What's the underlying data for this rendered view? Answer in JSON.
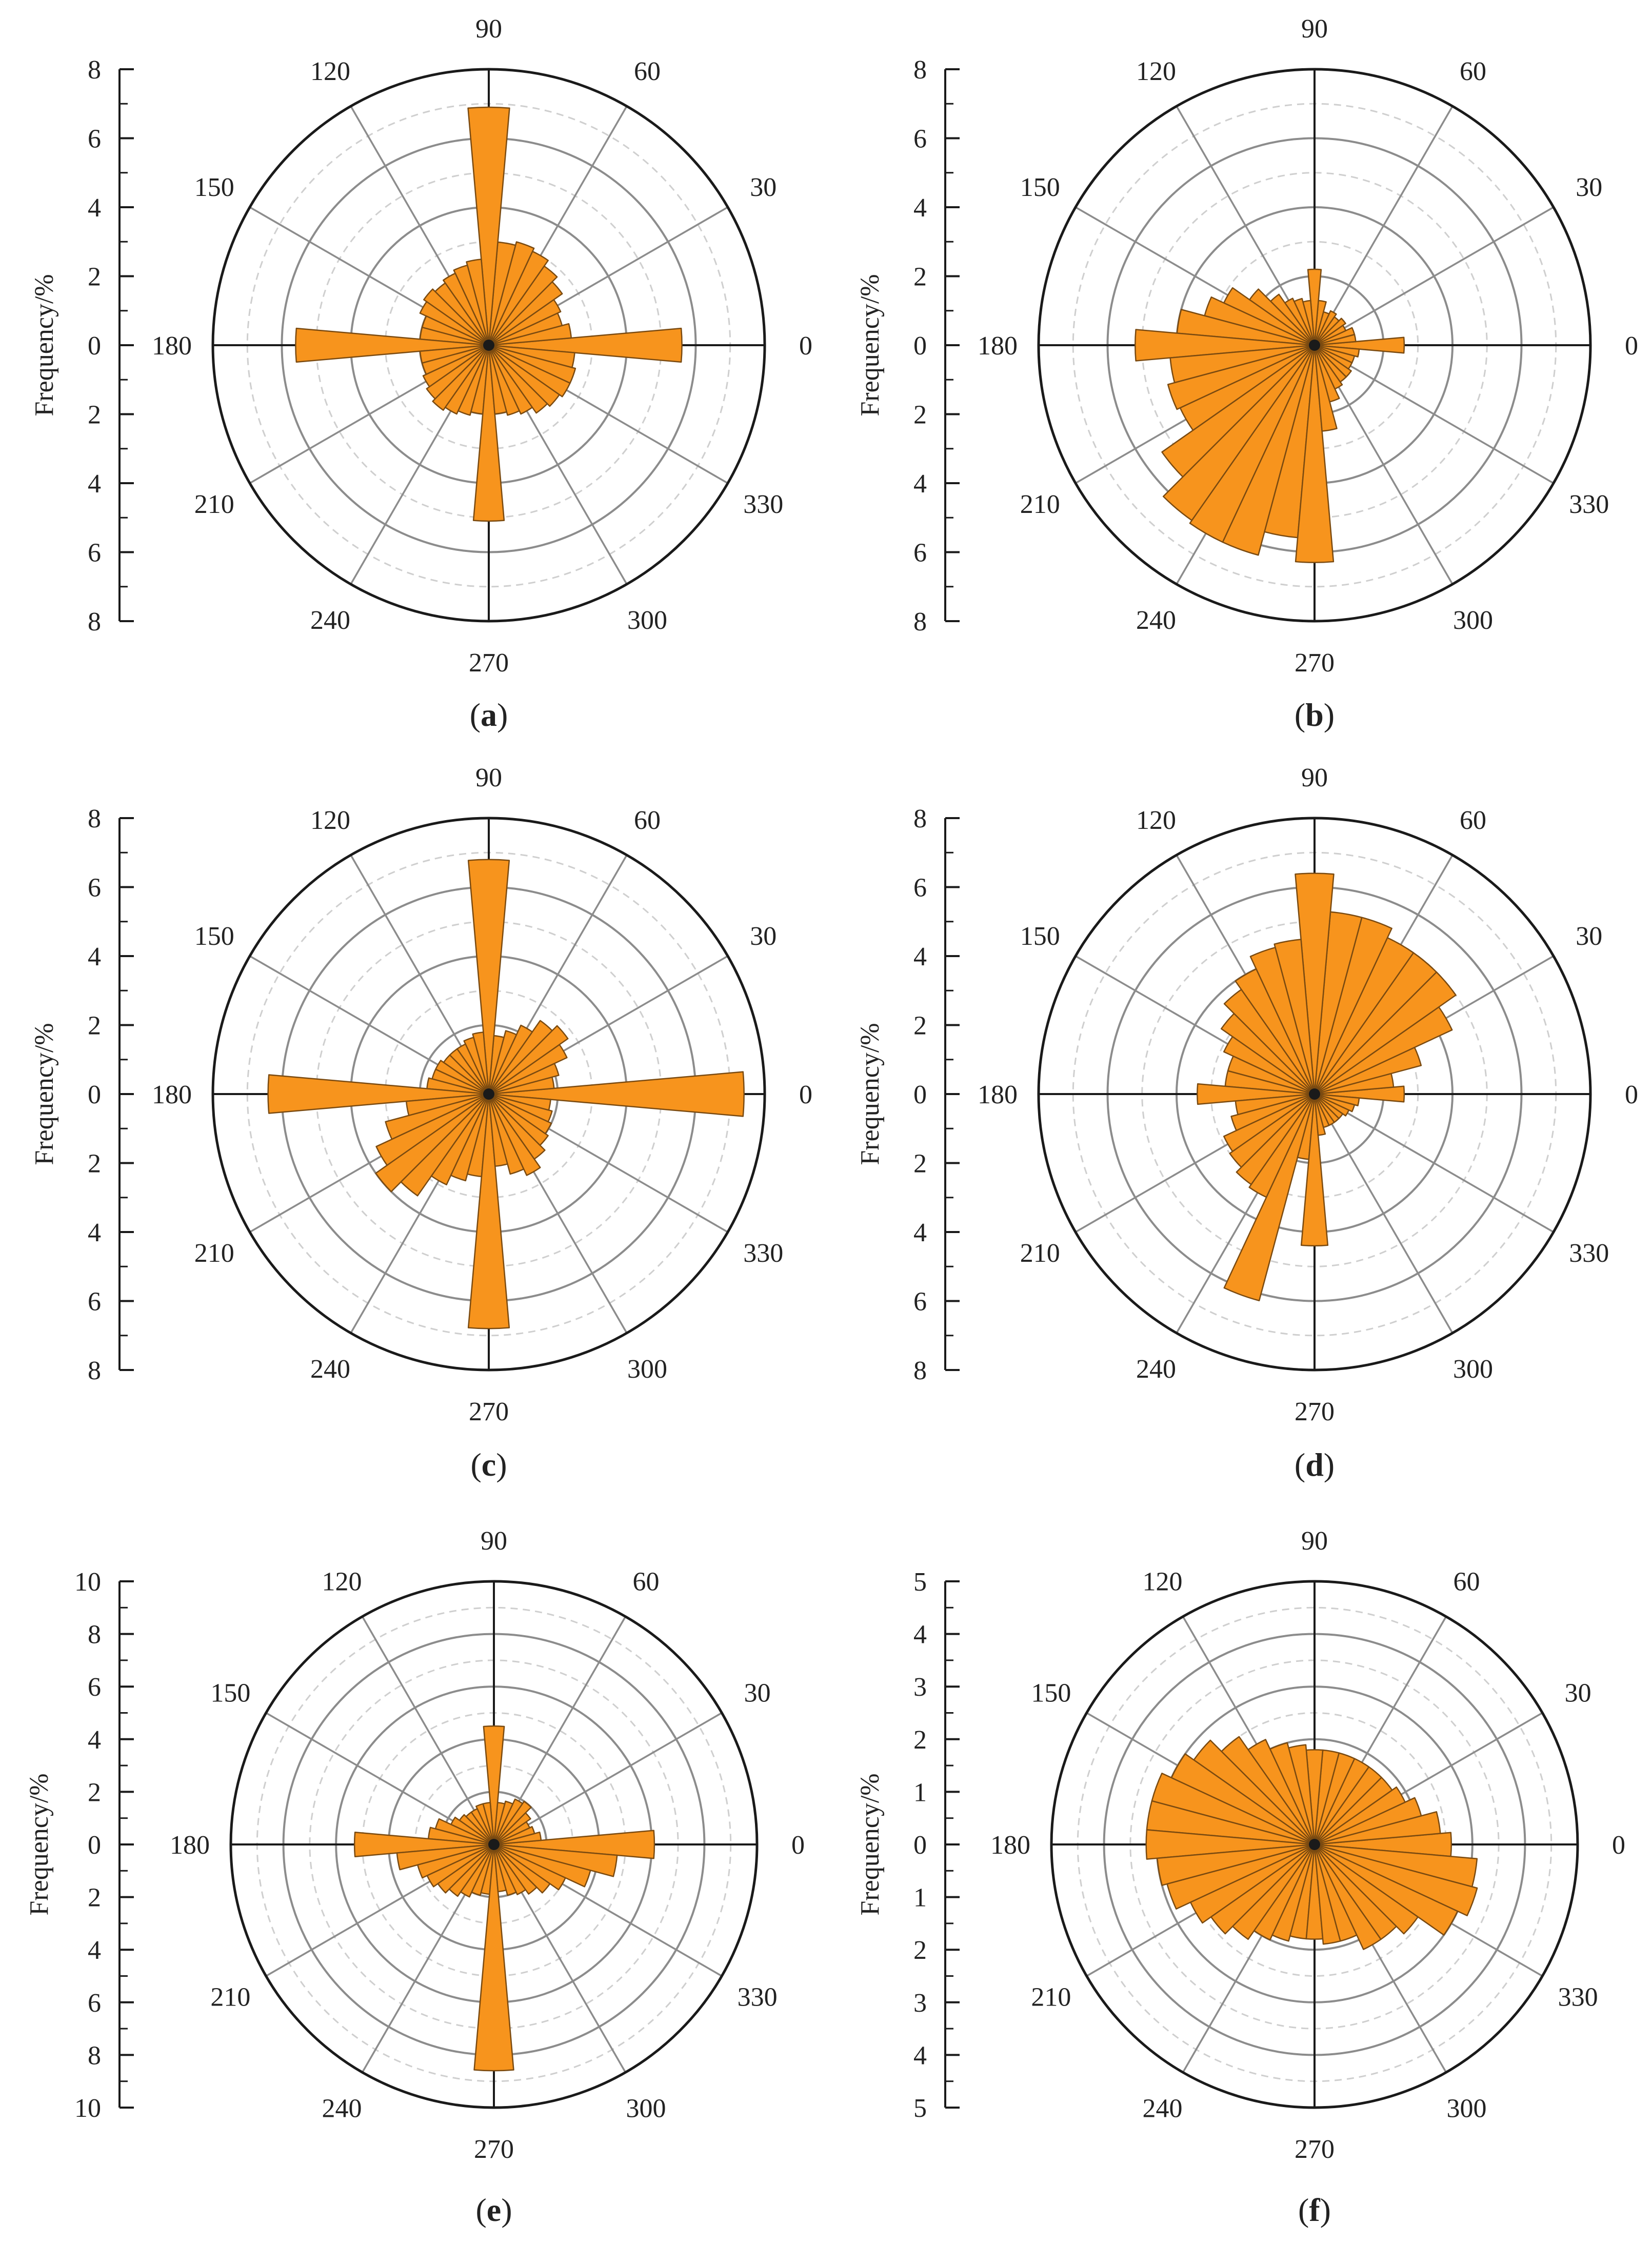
{
  "figure": {
    "colors": {
      "bar_fill": "#f7941d",
      "bar_stroke": "#7a4a10",
      "major_ring": "#8c8c8c",
      "minor_ring": "#cfcfcf",
      "spoke": "#8c8c8c",
      "outer_ring": "#1a1a1a",
      "axis": "#1a1a1a"
    }
  },
  "chart_data": [
    {
      "id": "a",
      "caption_letter": "a",
      "type": "rose",
      "bin_width_deg": 10,
      "angle_labels": [
        "0",
        "30",
        "60",
        "90",
        "120",
        "150",
        "180",
        "210",
        "240",
        "270",
        "300",
        "330"
      ],
      "radial_axis_label": "Frequency/%",
      "radial_ticks": [
        "8",
        "6",
        "4",
        "2",
        "0",
        "2",
        "4",
        "6",
        "8"
      ],
      "r_max": 8,
      "r_major_step": 2,
      "r_minor_step": 1,
      "bins": [
        {
          "angle": 0,
          "value": 5.6
        },
        {
          "angle": 10,
          "value": 2.4
        },
        {
          "angle": 20,
          "value": 2.2
        },
        {
          "angle": 30,
          "value": 2.3
        },
        {
          "angle": 40,
          "value": 2.6
        },
        {
          "angle": 50,
          "value": 2.8
        },
        {
          "angle": 60,
          "value": 3.0
        },
        {
          "angle": 70,
          "value": 3.1
        },
        {
          "angle": 80,
          "value": 3.0
        },
        {
          "angle": 90,
          "value": 6.9
        },
        {
          "angle": 100,
          "value": 2.5
        },
        {
          "angle": 110,
          "value": 2.4
        },
        {
          "angle": 120,
          "value": 2.3
        },
        {
          "angle": 130,
          "value": 2.2
        },
        {
          "angle": 140,
          "value": 2.3
        },
        {
          "angle": 150,
          "value": 2.2
        },
        {
          "angle": 160,
          "value": 2.0
        },
        {
          "angle": 170,
          "value": 2.0
        },
        {
          "angle": 180,
          "value": 5.6
        },
        {
          "angle": 190,
          "value": 2.0
        },
        {
          "angle": 200,
          "value": 2.0
        },
        {
          "angle": 210,
          "value": 2.1
        },
        {
          "angle": 220,
          "value": 2.2
        },
        {
          "angle": 230,
          "value": 2.3
        },
        {
          "angle": 240,
          "value": 2.2
        },
        {
          "angle": 250,
          "value": 2.1
        },
        {
          "angle": 260,
          "value": 2.0
        },
        {
          "angle": 270,
          "value": 5.1
        },
        {
          "angle": 280,
          "value": 2.0
        },
        {
          "angle": 290,
          "value": 2.1
        },
        {
          "angle": 300,
          "value": 2.2
        },
        {
          "angle": 310,
          "value": 2.4
        },
        {
          "angle": 320,
          "value": 2.5
        },
        {
          "angle": 330,
          "value": 2.6
        },
        {
          "angle": 340,
          "value": 2.6
        },
        {
          "angle": 350,
          "value": 2.5
        }
      ]
    },
    {
      "id": "b",
      "caption_letter": "b",
      "type": "rose",
      "bin_width_deg": 10,
      "angle_labels": [
        "0",
        "30",
        "60",
        "90",
        "120",
        "150",
        "180",
        "210",
        "240",
        "270",
        "300",
        "330"
      ],
      "radial_axis_label": "Frequency/%",
      "radial_ticks": [
        "8",
        "6",
        "4",
        "2",
        "0",
        "2",
        "4",
        "6",
        "8"
      ],
      "r_max": 8,
      "r_major_step": 2,
      "r_minor_step": 1,
      "bins": [
        {
          "angle": 0,
          "value": 2.6
        },
        {
          "angle": 10,
          "value": 1.2
        },
        {
          "angle": 20,
          "value": 1.2
        },
        {
          "angle": 30,
          "value": 1.0
        },
        {
          "angle": 40,
          "value": 1.1
        },
        {
          "angle": 50,
          "value": 1.0
        },
        {
          "angle": 60,
          "value": 1.1
        },
        {
          "angle": 70,
          "value": 1.0
        },
        {
          "angle": 80,
          "value": 1.3
        },
        {
          "angle": 90,
          "value": 2.2
        },
        {
          "angle": 100,
          "value": 1.3
        },
        {
          "angle": 110,
          "value": 1.4
        },
        {
          "angle": 120,
          "value": 1.5
        },
        {
          "angle": 130,
          "value": 1.8
        },
        {
          "angle": 140,
          "value": 2.3
        },
        {
          "angle": 150,
          "value": 2.9
        },
        {
          "angle": 160,
          "value": 3.3
        },
        {
          "angle": 170,
          "value": 4.0
        },
        {
          "angle": 180,
          "value": 5.2
        },
        {
          "angle": 190,
          "value": 4.2
        },
        {
          "angle": 200,
          "value": 4.4
        },
        {
          "angle": 210,
          "value": 4.3
        },
        {
          "angle": 220,
          "value": 5.4
        },
        {
          "angle": 230,
          "value": 6.2
        },
        {
          "angle": 240,
          "value": 6.3
        },
        {
          "angle": 250,
          "value": 6.3
        },
        {
          "angle": 260,
          "value": 5.6
        },
        {
          "angle": 270,
          "value": 6.3
        },
        {
          "angle": 280,
          "value": 2.5
        },
        {
          "angle": 290,
          "value": 1.7
        },
        {
          "angle": 300,
          "value": 1.4
        },
        {
          "angle": 310,
          "value": 1.3
        },
        {
          "angle": 320,
          "value": 1.3
        },
        {
          "angle": 330,
          "value": 1.2
        },
        {
          "angle": 340,
          "value": 1.2
        },
        {
          "angle": 350,
          "value": 1.3
        }
      ]
    },
    {
      "id": "c",
      "caption_letter": "c",
      "type": "rose",
      "bin_width_deg": 10,
      "angle_labels": [
        "0",
        "30",
        "60",
        "90",
        "120",
        "150",
        "180",
        "210",
        "240",
        "270",
        "300",
        "330"
      ],
      "radial_axis_label": "Frequency/%",
      "radial_ticks": [
        "8",
        "6",
        "4",
        "2",
        "0",
        "2",
        "4",
        "6",
        "8"
      ],
      "r_max": 8,
      "r_major_step": 2,
      "r_minor_step": 1,
      "bins": [
        {
          "angle": 0,
          "value": 7.4
        },
        {
          "angle": 10,
          "value": 1.9
        },
        {
          "angle": 20,
          "value": 2.1
        },
        {
          "angle": 30,
          "value": 2.5
        },
        {
          "angle": 40,
          "value": 2.8
        },
        {
          "angle": 50,
          "value": 2.6
        },
        {
          "angle": 60,
          "value": 2.2
        },
        {
          "angle": 70,
          "value": 1.9
        },
        {
          "angle": 80,
          "value": 1.7
        },
        {
          "angle": 90,
          "value": 6.8
        },
        {
          "angle": 100,
          "value": 1.8
        },
        {
          "angle": 110,
          "value": 1.7
        },
        {
          "angle": 120,
          "value": 1.6
        },
        {
          "angle": 130,
          "value": 1.6
        },
        {
          "angle": 140,
          "value": 1.6
        },
        {
          "angle": 150,
          "value": 1.7
        },
        {
          "angle": 160,
          "value": 1.7
        },
        {
          "angle": 170,
          "value": 1.8
        },
        {
          "angle": 180,
          "value": 6.4
        },
        {
          "angle": 190,
          "value": 2.4
        },
        {
          "angle": 200,
          "value": 3.1
        },
        {
          "angle": 210,
          "value": 3.6
        },
        {
          "angle": 220,
          "value": 4.0
        },
        {
          "angle": 230,
          "value": 3.6
        },
        {
          "angle": 240,
          "value": 2.9
        },
        {
          "angle": 250,
          "value": 2.6
        },
        {
          "angle": 260,
          "value": 2.4
        },
        {
          "angle": 270,
          "value": 6.8
        },
        {
          "angle": 280,
          "value": 2.1
        },
        {
          "angle": 290,
          "value": 2.4
        },
        {
          "angle": 300,
          "value": 2.6
        },
        {
          "angle": 310,
          "value": 2.3
        },
        {
          "angle": 320,
          "value": 2.1
        },
        {
          "angle": 330,
          "value": 2.0
        },
        {
          "angle": 340,
          "value": 1.9
        },
        {
          "angle": 350,
          "value": 1.8
        }
      ]
    },
    {
      "id": "d",
      "caption_letter": "d",
      "type": "rose",
      "bin_width_deg": 10,
      "angle_labels": [
        "0",
        "30",
        "60",
        "90",
        "120",
        "150",
        "180",
        "210",
        "240",
        "270",
        "300",
        "330"
      ],
      "radial_axis_label": "Frequency/%",
      "radial_ticks": [
        "8",
        "6",
        "4",
        "2",
        "0",
        "2",
        "4",
        "6",
        "8"
      ],
      "r_max": 8,
      "r_major_step": 2,
      "r_minor_step": 1,
      "bins": [
        {
          "angle": 0,
          "value": 2.6
        },
        {
          "angle": 10,
          "value": 2.3
        },
        {
          "angle": 20,
          "value": 3.2
        },
        {
          "angle": 30,
          "value": 4.4
        },
        {
          "angle": 40,
          "value": 5.0
        },
        {
          "angle": 50,
          "value": 5.0
        },
        {
          "angle": 60,
          "value": 5.0
        },
        {
          "angle": 70,
          "value": 5.3
        },
        {
          "angle": 80,
          "value": 5.3
        },
        {
          "angle": 90,
          "value": 6.4
        },
        {
          "angle": 100,
          "value": 4.5
        },
        {
          "angle": 110,
          "value": 4.4
        },
        {
          "angle": 120,
          "value": 4.0
        },
        {
          "angle": 130,
          "value": 3.7
        },
        {
          "angle": 140,
          "value": 3.3
        },
        {
          "angle": 150,
          "value": 2.9
        },
        {
          "angle": 160,
          "value": 2.6
        },
        {
          "angle": 170,
          "value": 2.6
        },
        {
          "angle": 180,
          "value": 3.4
        },
        {
          "angle": 190,
          "value": 2.3
        },
        {
          "angle": 200,
          "value": 2.5
        },
        {
          "angle": 210,
          "value": 2.9
        },
        {
          "angle": 220,
          "value": 3.0
        },
        {
          "angle": 230,
          "value": 3.2
        },
        {
          "angle": 240,
          "value": 3.3
        },
        {
          "angle": 250,
          "value": 6.2
        },
        {
          "angle": 260,
          "value": 1.9
        },
        {
          "angle": 270,
          "value": 4.4
        },
        {
          "angle": 280,
          "value": 1.2
        },
        {
          "angle": 290,
          "value": 1.0
        },
        {
          "angle": 300,
          "value": 1.0
        },
        {
          "angle": 310,
          "value": 1.0
        },
        {
          "angle": 320,
          "value": 1.0
        },
        {
          "angle": 330,
          "value": 1.1
        },
        {
          "angle": 340,
          "value": 1.2
        },
        {
          "angle": 350,
          "value": 1.3
        }
      ]
    },
    {
      "id": "e",
      "caption_letter": "e",
      "type": "rose",
      "bin_width_deg": 10,
      "angle_labels": [
        "0",
        "30",
        "60",
        "90",
        "120",
        "150",
        "180",
        "210",
        "240",
        "270",
        "300",
        "330"
      ],
      "radial_axis_label": "Frequency/%",
      "radial_ticks": [
        "10",
        "8",
        "6",
        "4",
        "2",
        "0",
        "2",
        "4",
        "6",
        "8",
        "10"
      ],
      "r_max": 10,
      "r_major_step": 2,
      "r_minor_step": 1,
      "bins": [
        {
          "angle": 0,
          "value": 6.1
        },
        {
          "angle": 10,
          "value": 1.8
        },
        {
          "angle": 20,
          "value": 1.6
        },
        {
          "angle": 30,
          "value": 1.5
        },
        {
          "angle": 40,
          "value": 1.7
        },
        {
          "angle": 50,
          "value": 2.0
        },
        {
          "angle": 60,
          "value": 1.9
        },
        {
          "angle": 70,
          "value": 1.7
        },
        {
          "angle": 80,
          "value": 1.6
        },
        {
          "angle": 90,
          "value": 4.5
        },
        {
          "angle": 100,
          "value": 1.6
        },
        {
          "angle": 110,
          "value": 1.6
        },
        {
          "angle": 120,
          "value": 1.5
        },
        {
          "angle": 130,
          "value": 1.5
        },
        {
          "angle": 140,
          "value": 1.6
        },
        {
          "angle": 150,
          "value": 1.8
        },
        {
          "angle": 160,
          "value": 2.3
        },
        {
          "angle": 170,
          "value": 2.5
        },
        {
          "angle": 180,
          "value": 5.3
        },
        {
          "angle": 190,
          "value": 3.7
        },
        {
          "angle": 200,
          "value": 3.0
        },
        {
          "angle": 210,
          "value": 2.8
        },
        {
          "angle": 220,
          "value": 2.6
        },
        {
          "angle": 230,
          "value": 2.4
        },
        {
          "angle": 240,
          "value": 2.2
        },
        {
          "angle": 250,
          "value": 2.0
        },
        {
          "angle": 260,
          "value": 1.9
        },
        {
          "angle": 270,
          "value": 8.6
        },
        {
          "angle": 280,
          "value": 1.8
        },
        {
          "angle": 290,
          "value": 2.0
        },
        {
          "angle": 300,
          "value": 2.1
        },
        {
          "angle": 310,
          "value": 2.3
        },
        {
          "angle": 320,
          "value": 2.6
        },
        {
          "angle": 330,
          "value": 3.0
        },
        {
          "angle": 340,
          "value": 3.8
        },
        {
          "angle": 350,
          "value": 4.7
        }
      ]
    },
    {
      "id": "f",
      "caption_letter": "f",
      "type": "rose",
      "bin_width_deg": 10,
      "angle_labels": [
        "0",
        "30",
        "60",
        "90",
        "120",
        "150",
        "180",
        "210",
        "240",
        "270",
        "300",
        "330"
      ],
      "radial_axis_label": "Frequency/%",
      "radial_ticks": [
        "5",
        "4",
        "3",
        "2",
        "1",
        "0",
        "1",
        "2",
        "3",
        "4",
        "5"
      ],
      "r_max": 5,
      "r_major_step": 1,
      "r_minor_step": 0.5,
      "bins": [
        {
          "angle": 0,
          "value": 2.6
        },
        {
          "angle": 10,
          "value": 2.4
        },
        {
          "angle": 20,
          "value": 2.1
        },
        {
          "angle": 30,
          "value": 1.9
        },
        {
          "angle": 40,
          "value": 1.8
        },
        {
          "angle": 50,
          "value": 1.8
        },
        {
          "angle": 60,
          "value": 1.8
        },
        {
          "angle": 70,
          "value": 1.8
        },
        {
          "angle": 80,
          "value": 1.8
        },
        {
          "angle": 90,
          "value": 1.8
        },
        {
          "angle": 100,
          "value": 1.9
        },
        {
          "angle": 110,
          "value": 2.0
        },
        {
          "angle": 120,
          "value": 2.2
        },
        {
          "angle": 130,
          "value": 2.5
        },
        {
          "angle": 140,
          "value": 2.8
        },
        {
          "angle": 150,
          "value": 3.0
        },
        {
          "angle": 160,
          "value": 3.2
        },
        {
          "angle": 170,
          "value": 3.2
        },
        {
          "angle": 180,
          "value": 3.2
        },
        {
          "angle": 190,
          "value": 3.0
        },
        {
          "angle": 200,
          "value": 2.9
        },
        {
          "angle": 210,
          "value": 2.6
        },
        {
          "angle": 220,
          "value": 2.4
        },
        {
          "angle": 230,
          "value": 2.2
        },
        {
          "angle": 240,
          "value": 2.0
        },
        {
          "angle": 250,
          "value": 1.9
        },
        {
          "angle": 260,
          "value": 1.8
        },
        {
          "angle": 270,
          "value": 1.8
        },
        {
          "angle": 280,
          "value": 1.9
        },
        {
          "angle": 290,
          "value": 1.9
        },
        {
          "angle": 300,
          "value": 2.2
        },
        {
          "angle": 310,
          "value": 2.2
        },
        {
          "angle": 320,
          "value": 2.4
        },
        {
          "angle": 330,
          "value": 3.0
        },
        {
          "angle": 340,
          "value": 3.2
        },
        {
          "angle": 350,
          "value": 3.1
        }
      ]
    }
  ]
}
